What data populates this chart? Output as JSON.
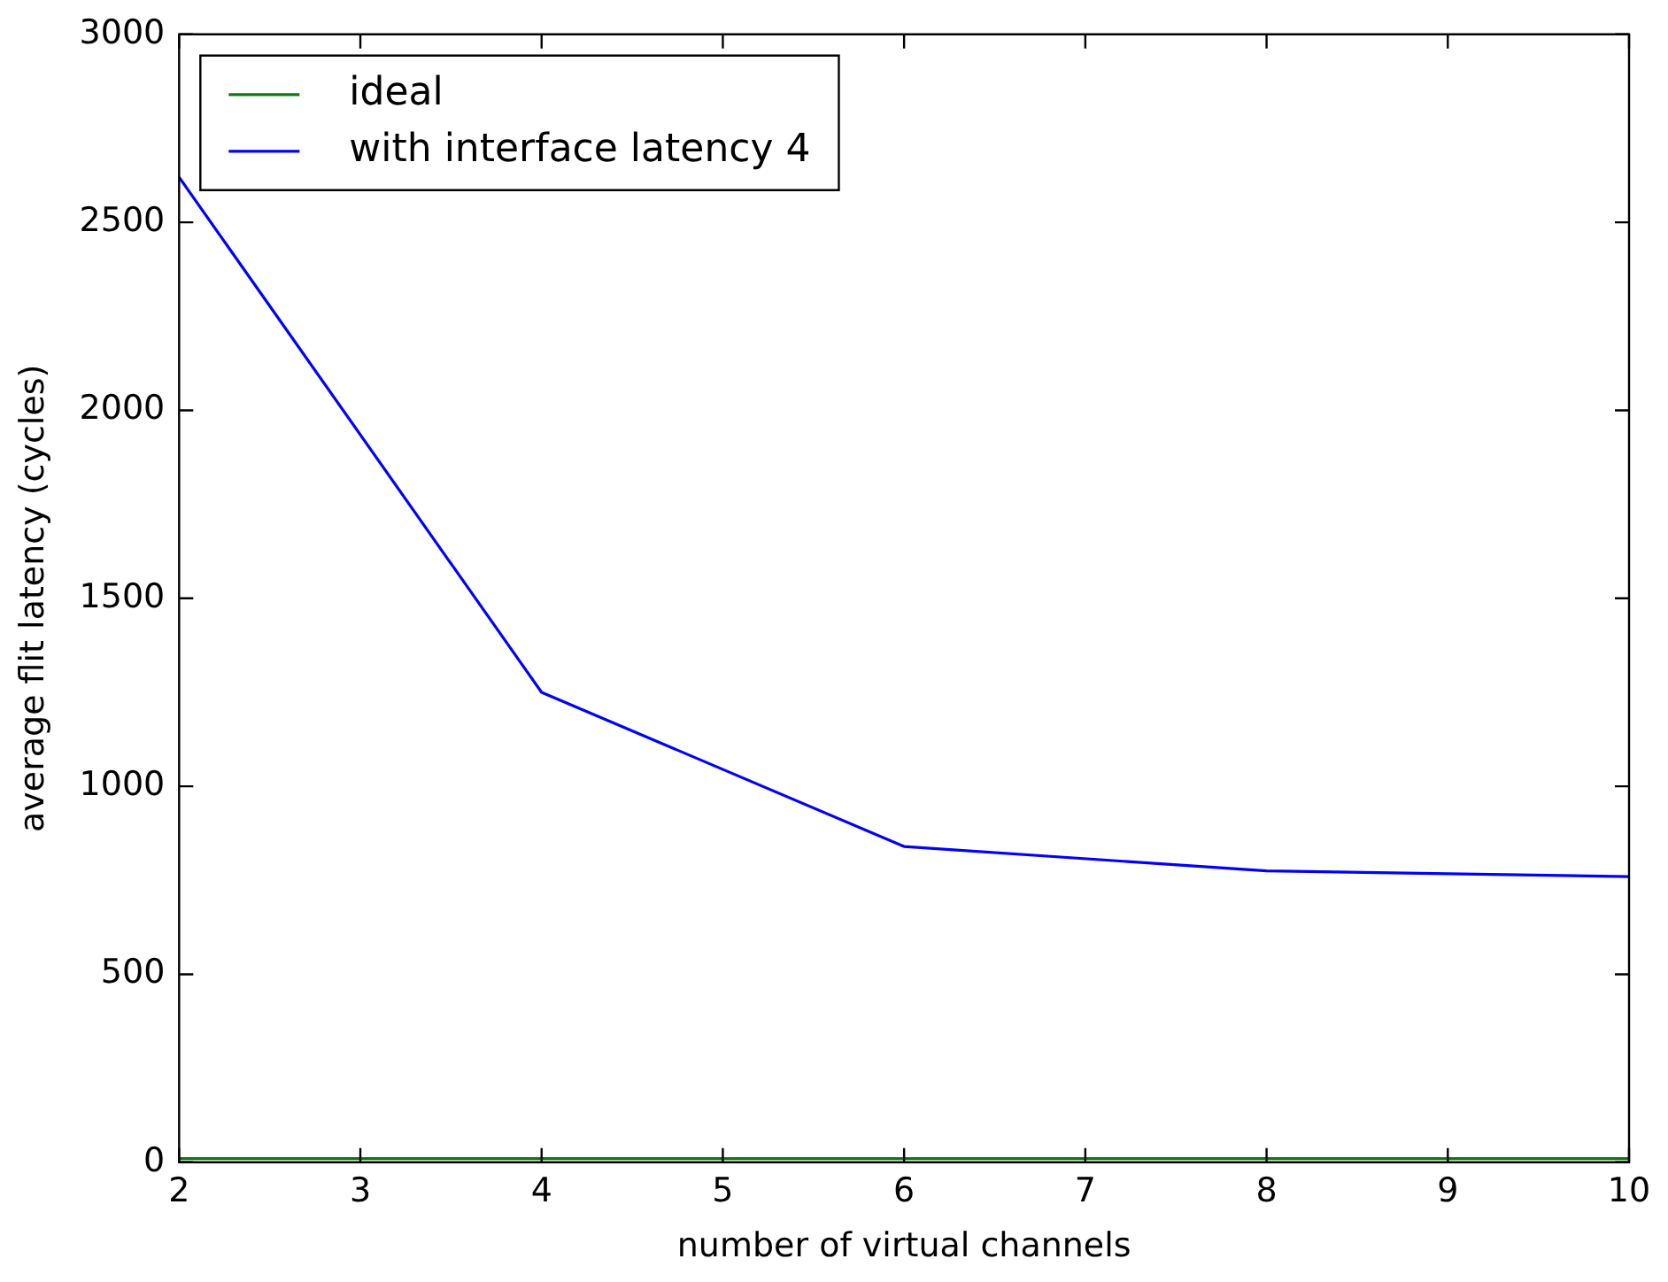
{
  "chart_data": {
    "type": "line",
    "xlabel": "number of virtual channels",
    "ylabel": "average flit latency (cycles)",
    "x": [
      2,
      4,
      6,
      8,
      10
    ],
    "series": [
      {
        "name": "ideal",
        "color": "#008000",
        "values": [
          10,
          10,
          10,
          10,
          10
        ]
      },
      {
        "name": "with interface latency 4",
        "color": "#0000ff",
        "values": [
          2620,
          1250,
          840,
          775,
          760
        ]
      }
    ],
    "xlim": [
      2,
      10
    ],
    "xticks": [
      2,
      3,
      4,
      5,
      6,
      7,
      8,
      9,
      10
    ],
    "ylim": [
      0,
      3000
    ],
    "yticks": [
      0,
      500,
      1000,
      1500,
      2000,
      2500,
      3000
    ],
    "grid": false,
    "legend": "top left",
    "marker": "none",
    "line_style": "solid"
  }
}
